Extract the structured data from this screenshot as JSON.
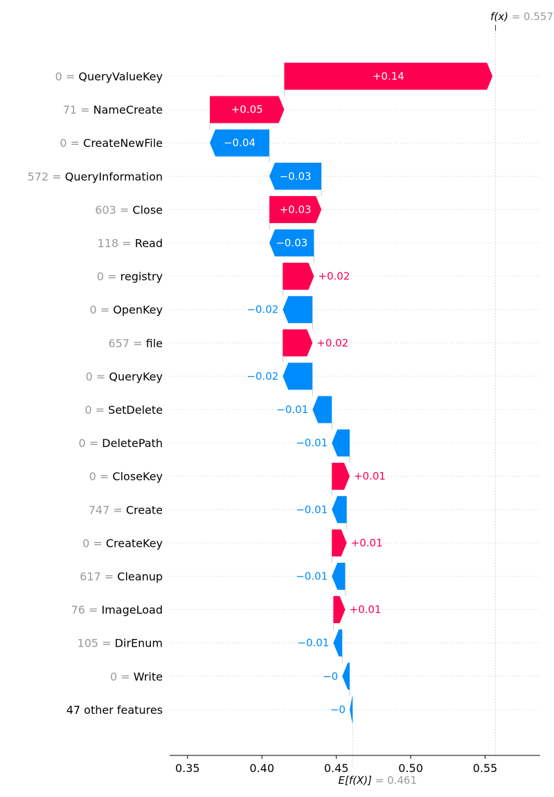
{
  "chart_data": {
    "type": "waterfall",
    "title": "",
    "xlabel": "",
    "xlim": [
      0.338,
      0.587
    ],
    "xticks": [
      0.35,
      0.4,
      0.45,
      0.5,
      0.55
    ],
    "xtick_labels": [
      "0.35",
      "0.40",
      "0.45",
      "0.50",
      "0.55"
    ],
    "base_value": 0.461,
    "base_label": "E[f(X)]",
    "base_value_text": "= 0.461",
    "output_value": 0.557,
    "output_label": "f(x)",
    "output_value_text": "= 0.557",
    "colors": {
      "positive": "#ff0051",
      "negative": "#008bfb",
      "feature_value": "#999999",
      "grid": "#cccccc"
    },
    "features": [
      {
        "value": "0 =",
        "name": "QueryValueKey",
        "contribution": 0.14,
        "label": "+0.14"
      },
      {
        "value": "71 =",
        "name": "NameCreate",
        "contribution": 0.05,
        "label": "+0.05"
      },
      {
        "value": "0 =",
        "name": "CreateNewFile",
        "contribution": -0.04,
        "label": "−0.04"
      },
      {
        "value": "572 =",
        "name": "QueryInformation",
        "contribution": -0.035,
        "label": "−0.03"
      },
      {
        "value": "603 =",
        "name": "Close",
        "contribution": 0.035,
        "label": "+0.03"
      },
      {
        "value": "118 =",
        "name": "Read",
        "contribution": -0.03,
        "label": "−0.03"
      },
      {
        "value": "0 =",
        "name": "registry",
        "contribution": 0.021,
        "label": "+0.02"
      },
      {
        "value": "0 =",
        "name": "OpenKey",
        "contribution": -0.02,
        "label": "−0.02"
      },
      {
        "value": "657 =",
        "name": "file",
        "contribution": 0.02,
        "label": "+0.02"
      },
      {
        "value": "0 =",
        "name": "QueryKey",
        "contribution": -0.02,
        "label": "−0.02"
      },
      {
        "value": "0 =",
        "name": "SetDelete",
        "contribution": -0.013,
        "label": "−0.01"
      },
      {
        "value": "0 =",
        "name": "DeletePath",
        "contribution": -0.012,
        "label": "−0.01"
      },
      {
        "value": "0 =",
        "name": "CloseKey",
        "contribution": 0.012,
        "label": "+0.01"
      },
      {
        "value": "747 =",
        "name": "Create",
        "contribution": -0.01,
        "label": "−0.01"
      },
      {
        "value": "0 =",
        "name": "CreateKey",
        "contribution": 0.01,
        "label": "+0.01"
      },
      {
        "value": "617 =",
        "name": "Cleanup",
        "contribution": -0.009,
        "label": "−0.01"
      },
      {
        "value": "76 =",
        "name": "ImageLoad",
        "contribution": 0.008,
        "label": "+0.01"
      },
      {
        "value": "105 =",
        "name": "DirEnum",
        "contribution": -0.006,
        "label": "−0.01"
      },
      {
        "value": "0 =",
        "name": "Write",
        "contribution": -0.005,
        "label": "−0"
      },
      {
        "value": "",
        "name": "47 other features",
        "contribution": -0.002,
        "label": "−0"
      }
    ]
  }
}
